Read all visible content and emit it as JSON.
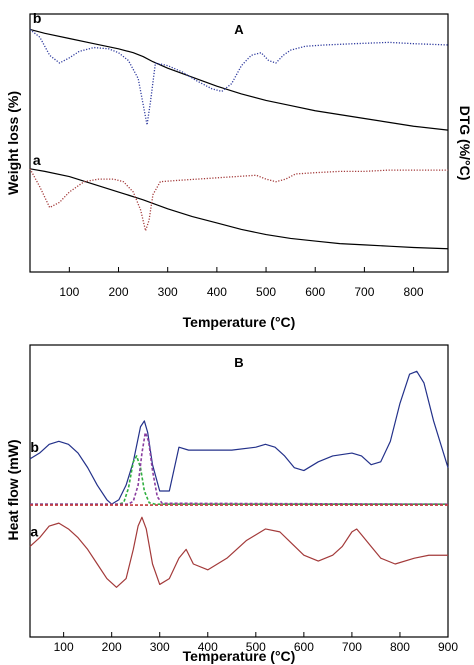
{
  "chart_data": [
    {
      "type": "line",
      "title": "A",
      "xlabel": "Temperature (°C)",
      "ylabel_left": "Weight loss (%)",
      "ylabel_right": "DTG (%/°C)",
      "xlim": [
        20,
        870
      ],
      "x_ticks": [
        100,
        200,
        300,
        400,
        500,
        600,
        700,
        800
      ],
      "left_y_ticks": false,
      "right_y_ticks": false,
      "grid": false,
      "legend": "none",
      "curve_labels": [
        {
          "text": "b",
          "x": 30,
          "y": 0.95
        },
        {
          "text": "a",
          "x": 30,
          "y": 0.4
        }
      ],
      "series": [
        {
          "style": "solid",
          "color": "#000000",
          "x": [
            20,
            50,
            100,
            150,
            200,
            230,
            250,
            270,
            300,
            350,
            400,
            450,
            500,
            550,
            600,
            650,
            700,
            750,
            800,
            870
          ],
          "y": [
            0.94,
            0.925,
            0.905,
            0.885,
            0.865,
            0.85,
            0.835,
            0.815,
            0.79,
            0.755,
            0.72,
            0.69,
            0.665,
            0.645,
            0.625,
            0.61,
            0.595,
            0.58,
            0.565,
            0.55
          ]
        },
        {
          "style": "dotted",
          "color": "#2e3a9e",
          "x": [
            20,
            40,
            60,
            80,
            100,
            120,
            150,
            180,
            200,
            220,
            240,
            250,
            258,
            265,
            275,
            300,
            330,
            360,
            390,
            410,
            430,
            450,
            470,
            490,
            505,
            520,
            535,
            550,
            580,
            620,
            680,
            750,
            800,
            870
          ],
          "y": [
            0.94,
            0.91,
            0.84,
            0.81,
            0.83,
            0.855,
            0.87,
            0.865,
            0.85,
            0.82,
            0.75,
            0.65,
            0.57,
            0.66,
            0.81,
            0.8,
            0.775,
            0.74,
            0.71,
            0.7,
            0.73,
            0.8,
            0.84,
            0.85,
            0.82,
            0.81,
            0.84,
            0.86,
            0.875,
            0.88,
            0.885,
            0.89,
            0.885,
            0.88
          ]
        },
        {
          "style": "solid",
          "color": "#000000",
          "x": [
            20,
            50,
            100,
            150,
            200,
            250,
            300,
            350,
            400,
            450,
            500,
            550,
            600,
            650,
            700,
            750,
            800,
            870
          ],
          "y": [
            0.4,
            0.39,
            0.37,
            0.34,
            0.31,
            0.28,
            0.245,
            0.215,
            0.19,
            0.165,
            0.145,
            0.13,
            0.12,
            0.11,
            0.105,
            0.1,
            0.095,
            0.09
          ]
        },
        {
          "style": "dotted",
          "color": "#a33a3a",
          "x": [
            20,
            40,
            60,
            80,
            100,
            130,
            160,
            190,
            210,
            230,
            245,
            255,
            262,
            270,
            285,
            320,
            360,
            400,
            440,
            480,
            500,
            520,
            540,
            560,
            600,
            650,
            700,
            750,
            800,
            870
          ],
          "y": [
            0.4,
            0.33,
            0.25,
            0.27,
            0.31,
            0.35,
            0.36,
            0.36,
            0.35,
            0.31,
            0.24,
            0.16,
            0.2,
            0.3,
            0.35,
            0.355,
            0.36,
            0.365,
            0.37,
            0.375,
            0.36,
            0.35,
            0.36,
            0.38,
            0.385,
            0.39,
            0.39,
            0.395,
            0.395,
            0.395
          ]
        }
      ]
    },
    {
      "type": "line",
      "title": "B",
      "xlabel": "Temperature (°C)",
      "ylabel": "Heat flow (mW)",
      "xlim": [
        30,
        900
      ],
      "x_ticks": [
        100,
        200,
        300,
        400,
        500,
        600,
        700,
        800,
        900
      ],
      "y_ticks": false,
      "grid": false,
      "legend": "none",
      "curve_labels": [
        {
          "text": "b",
          "x": 35,
          "y": 0.62
        },
        {
          "text": "a",
          "x": 35,
          "y": 0.33
        }
      ],
      "series": [
        {
          "style": "solid",
          "color": "#23318a",
          "x": [
            30,
            50,
            70,
            90,
            110,
            130,
            150,
            170,
            190,
            200,
            215,
            230,
            245,
            260,
            268,
            275,
            285,
            300,
            320,
            340,
            360,
            400,
            450,
            500,
            520,
            540,
            560,
            580,
            600,
            630,
            660,
            700,
            720,
            740,
            760,
            780,
            800,
            820,
            835,
            850,
            870,
            900
          ],
          "y": [
            0.61,
            0.63,
            0.66,
            0.67,
            0.66,
            0.63,
            0.58,
            0.52,
            0.47,
            0.455,
            0.47,
            0.52,
            0.6,
            0.72,
            0.74,
            0.7,
            0.59,
            0.5,
            0.5,
            0.65,
            0.64,
            0.64,
            0.64,
            0.65,
            0.66,
            0.65,
            0.62,
            0.58,
            0.57,
            0.6,
            0.62,
            0.63,
            0.62,
            0.59,
            0.6,
            0.67,
            0.8,
            0.9,
            0.91,
            0.87,
            0.74,
            0.58
          ]
        },
        {
          "style": "dashed",
          "color": "#2faf3f",
          "x": [
            30,
            215,
            225,
            235,
            245,
            252,
            260,
            268,
            278,
            290,
            900
          ],
          "y": [
            0.455,
            0.455,
            0.46,
            0.51,
            0.6,
            0.62,
            0.58,
            0.5,
            0.46,
            0.455,
            0.455
          ]
        },
        {
          "style": "dashed",
          "color": "#8a3ea0",
          "x": [
            30,
            235,
            245,
            255,
            263,
            270,
            277,
            285,
            295,
            305,
            900
          ],
          "y": [
            0.455,
            0.455,
            0.465,
            0.52,
            0.63,
            0.7,
            0.67,
            0.57,
            0.48,
            0.458,
            0.455
          ]
        },
        {
          "style": "dashed",
          "color": "#c23a3a",
          "x": [
            30,
            900
          ],
          "y": [
            0.452,
            0.452
          ]
        },
        {
          "style": "solid",
          "color": "#a33a3a",
          "x": [
            30,
            50,
            70,
            90,
            110,
            130,
            150,
            170,
            190,
            210,
            230,
            245,
            255,
            263,
            272,
            285,
            300,
            320,
            340,
            355,
            370,
            400,
            440,
            480,
            520,
            550,
            575,
            600,
            630,
            660,
            680,
            700,
            710,
            720,
            740,
            760,
            790,
            830,
            860,
            900
          ],
          "y": [
            0.31,
            0.34,
            0.38,
            0.39,
            0.37,
            0.34,
            0.3,
            0.25,
            0.2,
            0.17,
            0.2,
            0.3,
            0.38,
            0.41,
            0.37,
            0.25,
            0.18,
            0.2,
            0.27,
            0.3,
            0.25,
            0.23,
            0.27,
            0.33,
            0.37,
            0.36,
            0.32,
            0.28,
            0.26,
            0.28,
            0.31,
            0.36,
            0.37,
            0.35,
            0.31,
            0.27,
            0.25,
            0.27,
            0.28,
            0.28
          ]
        }
      ]
    }
  ]
}
